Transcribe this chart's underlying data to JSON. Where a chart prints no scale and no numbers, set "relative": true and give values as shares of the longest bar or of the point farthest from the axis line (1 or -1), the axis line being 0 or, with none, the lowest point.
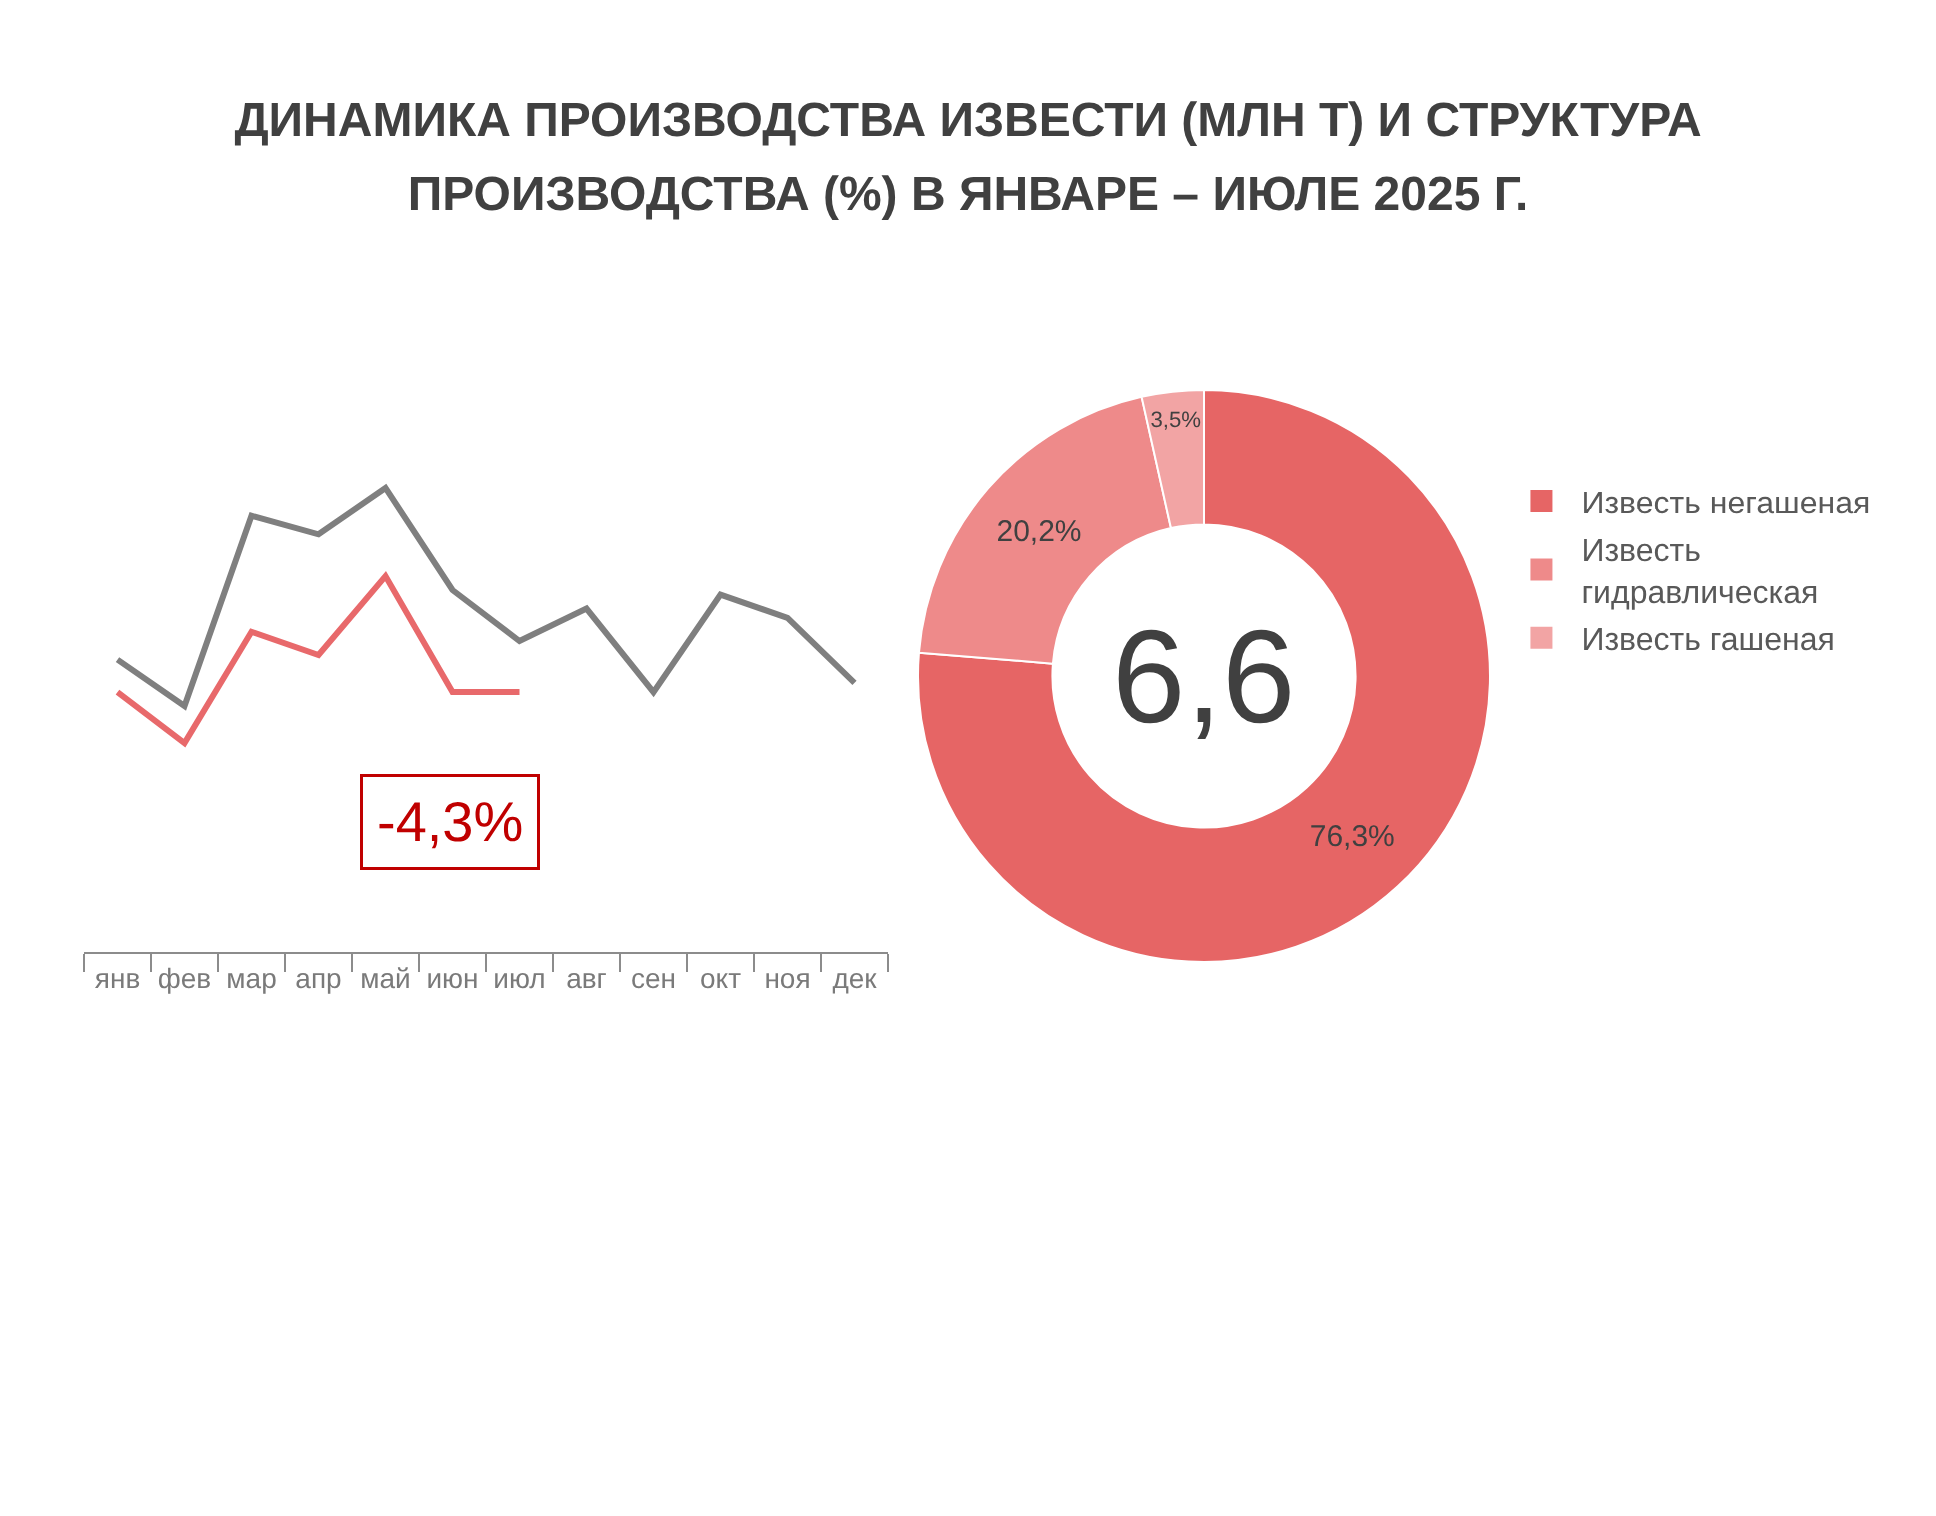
{
  "chart_data": [
    {
      "type": "line",
      "title": "ДИНАМИКА ПРОИЗВОДСТВА ИЗВЕСТИ (МЛН Т) И СТРУКТУРА ПРОИЗВОДСТВА (%) В ЯНВАРЕ – ИЮЛЕ 2025 Г.",
      "categories": [
        "янв",
        "фев",
        "мар",
        "апр",
        "май",
        "июн",
        "июл",
        "авг",
        "сен",
        "окт",
        "ноя",
        "дек"
      ],
      "relative": true,
      "line_style": "solid",
      "series": [
        {
          "color": "#7f7f7f",
          "values": [
            0.63,
            0.53,
            0.94,
            0.9,
            1,
            0.78,
            0.67,
            0.74,
            0.56,
            0.77,
            0.72,
            0.58
          ]
        },
        {
          "color": "#e8696b",
          "values": [
            0.56,
            0.45,
            0.69,
            0.64,
            0.81,
            0.56,
            0.56,
            null,
            null,
            null,
            null,
            null
          ]
        }
      ],
      "annotations": [
        "-4,3%"
      ]
    },
    {
      "type": "donut",
      "categories": [
        "Известь негашеная",
        "Известь гидравлическая",
        "Известь гашеная"
      ],
      "values": [
        76.3,
        20.2,
        3.5
      ],
      "colors": [
        "#e66565",
        "#ee8a8a",
        "#f2a4a4"
      ],
      "value_labels": [
        "76,3%",
        "20,2%",
        "3,5%"
      ],
      "legend": "right",
      "annotations": [
        "6,6"
      ]
    }
  ]
}
